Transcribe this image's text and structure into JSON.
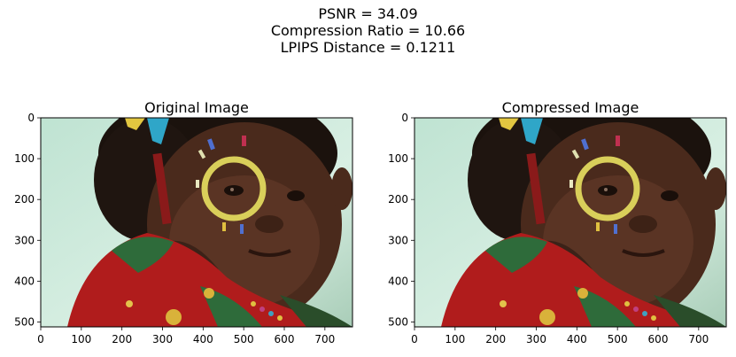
{
  "figure": {
    "suptitle_lines": [
      "PSNR = 34.09",
      "Compression Ratio = 10.66",
      "LPIPS Distance = 0.1211"
    ]
  },
  "panels": [
    {
      "title": "Original Image",
      "x_ticks": [
        "0",
        "100",
        "200",
        "300",
        "400",
        "500",
        "600",
        "700"
      ],
      "y_ticks": [
        "0",
        "100",
        "200",
        "300",
        "400",
        "500"
      ],
      "image_width": 768,
      "image_height": 512
    },
    {
      "title": "Compressed Image",
      "x_ticks": [
        "0",
        "100",
        "200",
        "300",
        "400",
        "500",
        "600",
        "700"
      ],
      "y_ticks": [
        "0",
        "100",
        "200",
        "300",
        "400",
        "500"
      ],
      "image_width": 768,
      "image_height": 512
    }
  ],
  "colors": {
    "background_tint": "#cfe9dc",
    "skin": "#4a2a1c",
    "sweater_red": "#b01c1c",
    "sweater_green": "#2e6b3a",
    "face_paint_yellow": "#d9cf5a",
    "ribbon_blue": "#2fa6c8"
  }
}
